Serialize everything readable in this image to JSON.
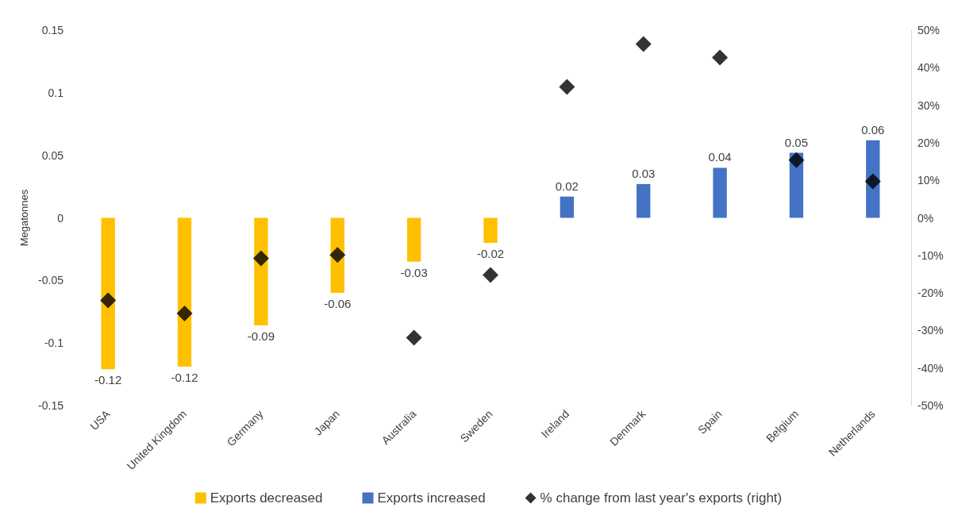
{
  "chart_data": {
    "type": "bar",
    "ylabel": "Megatonnes",
    "categories": [
      "USA",
      "United Kingdom",
      "Germany",
      "Japan",
      "Australia",
      "Sweden",
      "Ireland",
      "Denmark",
      "Spain",
      "Belgium",
      "Netherlands"
    ],
    "series": [
      {
        "name": "Exports decreased",
        "color": "#ffc000",
        "values": [
          -0.121,
          -0.119,
          -0.086,
          -0.06,
          -0.035,
          -0.02,
          null,
          null,
          null,
          null,
          null
        ],
        "value_labels": [
          "-0.12",
          "-0.12",
          "-0.09",
          "-0.06",
          "-0.03",
          "-0.02",
          null,
          null,
          null,
          null,
          null
        ]
      },
      {
        "name": "Exports increased",
        "color": "#4472c4",
        "values": [
          null,
          null,
          null,
          null,
          null,
          null,
          0.017,
          0.027,
          0.04,
          0.052,
          0.062
        ],
        "value_labels": [
          null,
          null,
          null,
          null,
          null,
          null,
          "0.02",
          "0.03",
          "0.04",
          "0.05",
          "0.06"
        ]
      },
      {
        "name": "% change from last year's exports (right)",
        "type": "scatter",
        "axis": "y2",
        "marker": "diamond",
        "color": "#000000",
        "values": [
          -22,
          -25.5,
          -10.8,
          -9.9,
          -31.9,
          -15.2,
          34.9,
          46.3,
          42.7,
          15.4,
          9.7
        ]
      }
    ],
    "ylim": [
      -0.15,
      0.15
    ],
    "yticks": [
      -0.15,
      -0.1,
      -0.05,
      0,
      0.05,
      0.1,
      0.15
    ],
    "y2lim": [
      -50,
      50
    ],
    "y2ticks": [
      {
        "value": -50,
        "label": "-50%"
      },
      {
        "value": -40,
        "label": "-40%"
      },
      {
        "value": -30,
        "label": "-30%"
      },
      {
        "value": -20,
        "label": "-20%"
      },
      {
        "value": -10,
        "label": "-10%"
      },
      {
        "value": 0,
        "label": "0%"
      },
      {
        "value": 10,
        "label": "10%"
      },
      {
        "value": 20,
        "label": "20%"
      },
      {
        "value": 30,
        "label": "30%"
      },
      {
        "value": 40,
        "label": "40%"
      },
      {
        "value": 50,
        "label": "50%"
      }
    ],
    "grid": false,
    "legend": "bottom"
  }
}
